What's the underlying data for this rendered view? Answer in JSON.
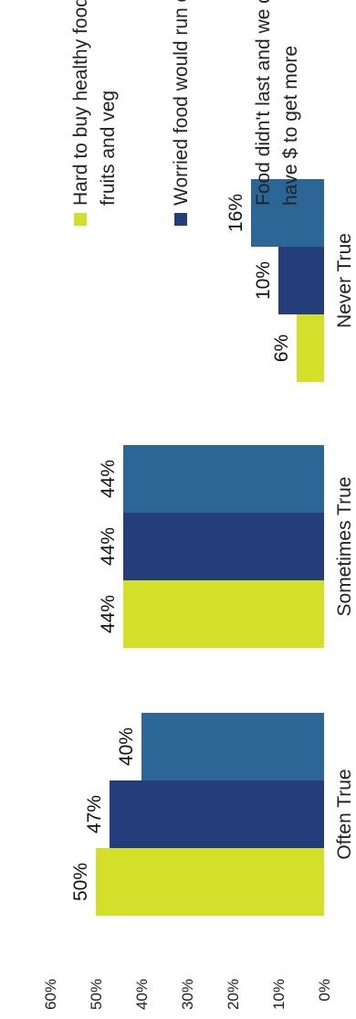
{
  "chart_data": {
    "type": "bar",
    "categories": [
      "Often True",
      "Sometimes True",
      "Never True"
    ],
    "series": [
      {
        "name": "Hard to buy healthy foods like fruits and veg",
        "color": "#d4df2a",
        "values": [
          50,
          44,
          6
        ],
        "labels": [
          "50%",
          "44%",
          "6%"
        ]
      },
      {
        "name": "Worried food would run out",
        "color": "#233e7a",
        "values": [
          47,
          44,
          10
        ],
        "labels": [
          "47%",
          "44%",
          "10%"
        ]
      },
      {
        "name": "Food didn't last and we didn't have $ to get more",
        "color": "#2c6696",
        "values": [
          40,
          44,
          16
        ],
        "labels": [
          "40%",
          "44%",
          "16%"
        ]
      }
    ],
    "ylim": [
      0,
      60
    ],
    "yticks": [
      "0%",
      "10%",
      "20%",
      "30%",
      "40%",
      "50%",
      "60%"
    ],
    "legend": {
      "position": "right",
      "entries": [
        [
          "Hard to buy healthy foods like",
          "fruits and veg"
        ],
        [
          "Worried food would run out"
        ],
        [
          "Food didn't last and we didn't",
          "have $ to get more"
        ]
      ]
    },
    "grid": false
  }
}
